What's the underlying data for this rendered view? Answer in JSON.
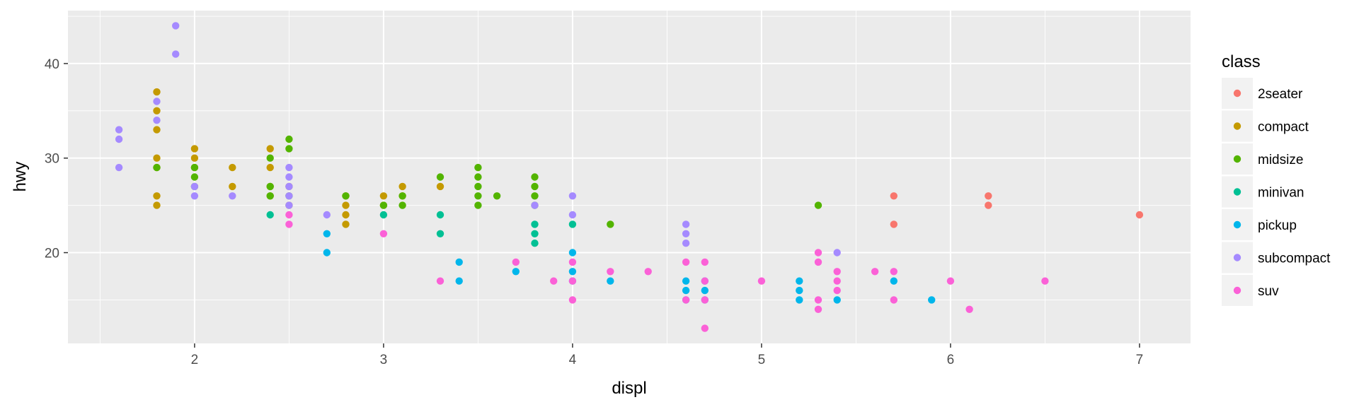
{
  "chart_data": {
    "type": "scatter",
    "title": "",
    "xlabel": "displ",
    "ylabel": "hwy",
    "xlim": [
      1.33,
      7.27
    ],
    "ylim": [
      10.4,
      45.6
    ],
    "x_ticks": [
      2,
      3,
      4,
      5,
      6,
      7
    ],
    "y_ticks": [
      20,
      30,
      40
    ],
    "grid": true,
    "legend_title": "class",
    "legend_position": "right",
    "background_color": "#ebebeb",
    "grid_color": "#ffffff",
    "series": [
      {
        "name": "2seater",
        "color": "#f8766d",
        "points": [
          [
            5.7,
            26
          ],
          [
            5.7,
            23
          ],
          [
            6.2,
            26
          ],
          [
            6.2,
            25
          ],
          [
            7.0,
            24
          ]
        ]
      },
      {
        "name": "compact",
        "color": "#c49a00",
        "points": [
          [
            1.8,
            37
          ],
          [
            1.8,
            35
          ],
          [
            1.8,
            33
          ],
          [
            1.8,
            30
          ],
          [
            1.8,
            29
          ],
          [
            1.8,
            26
          ],
          [
            1.8,
            25
          ],
          [
            2.0,
            31
          ],
          [
            2.0,
            30
          ],
          [
            2.0,
            29
          ],
          [
            2.2,
            29
          ],
          [
            2.2,
            27
          ],
          [
            2.4,
            31
          ],
          [
            2.4,
            29
          ],
          [
            2.4,
            27
          ],
          [
            2.4,
            26
          ],
          [
            2.5,
            27
          ],
          [
            2.5,
            25
          ],
          [
            2.8,
            26
          ],
          [
            2.8,
            25
          ],
          [
            2.8,
            24
          ],
          [
            2.8,
            23
          ],
          [
            3.0,
            26
          ],
          [
            3.0,
            25
          ],
          [
            3.1,
            27
          ],
          [
            3.1,
            26
          ],
          [
            3.3,
            27
          ]
        ]
      },
      {
        "name": "midsize",
        "color": "#53b400",
        "points": [
          [
            1.8,
            29
          ],
          [
            2.0,
            29
          ],
          [
            2.0,
            28
          ],
          [
            2.0,
            27
          ],
          [
            2.4,
            30
          ],
          [
            2.4,
            27
          ],
          [
            2.4,
            26
          ],
          [
            2.5,
            32
          ],
          [
            2.5,
            31
          ],
          [
            2.5,
            26
          ],
          [
            2.8,
            26
          ],
          [
            3.0,
            25
          ],
          [
            3.1,
            26
          ],
          [
            3.1,
            25
          ],
          [
            3.3,
            28
          ],
          [
            3.5,
            29
          ],
          [
            3.5,
            28
          ],
          [
            3.5,
            27
          ],
          [
            3.5,
            26
          ],
          [
            3.5,
            25
          ],
          [
            3.6,
            26
          ],
          [
            3.8,
            28
          ],
          [
            3.8,
            27
          ],
          [
            3.8,
            26
          ],
          [
            3.8,
            25
          ],
          [
            4.2,
            23
          ],
          [
            5.3,
            25
          ]
        ]
      },
      {
        "name": "minivan",
        "color": "#00c094",
        "points": [
          [
            2.4,
            24
          ],
          [
            3.0,
            24
          ],
          [
            3.3,
            24
          ],
          [
            3.3,
            22
          ],
          [
            3.8,
            23
          ],
          [
            3.8,
            22
          ],
          [
            3.8,
            21
          ],
          [
            4.0,
            23
          ]
        ]
      },
      {
        "name": "pickup",
        "color": "#00b6eb",
        "points": [
          [
            2.7,
            22
          ],
          [
            2.7,
            20
          ],
          [
            3.4,
            19
          ],
          [
            3.4,
            17
          ],
          [
            3.7,
            18
          ],
          [
            4.0,
            20
          ],
          [
            4.0,
            18
          ],
          [
            4.0,
            17
          ],
          [
            4.2,
            17
          ],
          [
            4.6,
            17
          ],
          [
            4.6,
            16
          ],
          [
            4.6,
            15
          ],
          [
            4.7,
            17
          ],
          [
            4.7,
            16
          ],
          [
            4.7,
            15
          ],
          [
            5.2,
            17
          ],
          [
            5.2,
            16
          ],
          [
            5.2,
            15
          ],
          [
            5.4,
            15
          ],
          [
            5.7,
            17
          ],
          [
            5.9,
            15
          ]
        ]
      },
      {
        "name": "subcompact",
        "color": "#a58aff",
        "points": [
          [
            1.6,
            33
          ],
          [
            1.6,
            32
          ],
          [
            1.6,
            29
          ],
          [
            1.8,
            36
          ],
          [
            1.8,
            34
          ],
          [
            1.9,
            44
          ],
          [
            1.9,
            41
          ],
          [
            2.0,
            27
          ],
          [
            2.0,
            26
          ],
          [
            2.2,
            26
          ],
          [
            2.5,
            29
          ],
          [
            2.5,
            28
          ],
          [
            2.5,
            27
          ],
          [
            2.5,
            26
          ],
          [
            2.5,
            25
          ],
          [
            2.7,
            24
          ],
          [
            3.8,
            25
          ],
          [
            4.0,
            26
          ],
          [
            4.0,
            24
          ],
          [
            4.6,
            23
          ],
          [
            4.6,
            22
          ],
          [
            4.6,
            21
          ],
          [
            5.4,
            20
          ]
        ]
      },
      {
        "name": "suv",
        "color": "#fb61d7",
        "points": [
          [
            2.5,
            24
          ],
          [
            2.5,
            23
          ],
          [
            3.0,
            22
          ],
          [
            3.3,
            17
          ],
          [
            3.7,
            19
          ],
          [
            3.9,
            17
          ],
          [
            4.0,
            19
          ],
          [
            4.0,
            17
          ],
          [
            4.0,
            15
          ],
          [
            4.2,
            18
          ],
          [
            4.4,
            18
          ],
          [
            4.6,
            19
          ],
          [
            4.6,
            15
          ],
          [
            4.7,
            19
          ],
          [
            4.7,
            17
          ],
          [
            4.7,
            15
          ],
          [
            4.7,
            12
          ],
          [
            5.0,
            17
          ],
          [
            5.3,
            20
          ],
          [
            5.3,
            19
          ],
          [
            5.3,
            15
          ],
          [
            5.3,
            14
          ],
          [
            5.4,
            18
          ],
          [
            5.4,
            17
          ],
          [
            5.4,
            16
          ],
          [
            5.6,
            18
          ],
          [
            5.7,
            18
          ],
          [
            5.7,
            15
          ],
          [
            6.0,
            17
          ],
          [
            6.1,
            14
          ],
          [
            6.5,
            17
          ]
        ]
      }
    ]
  }
}
